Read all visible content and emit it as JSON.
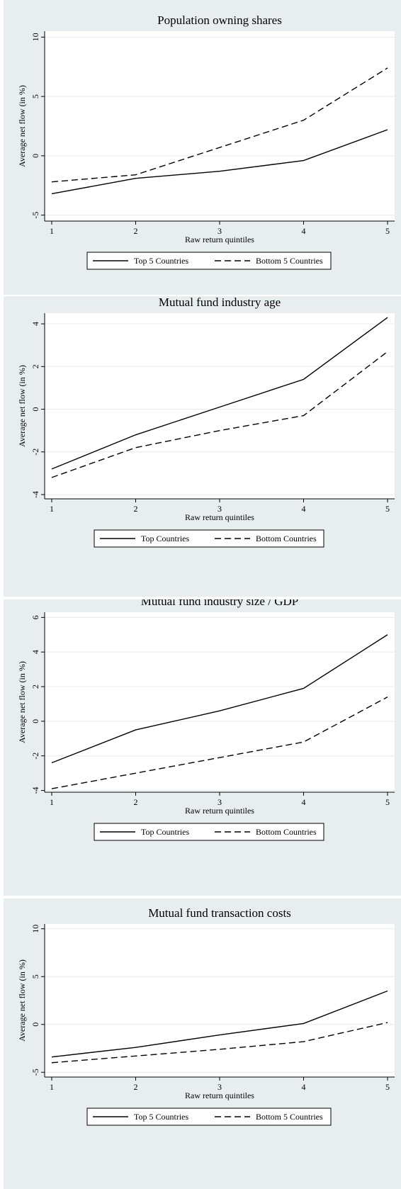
{
  "chart_data": [
    {
      "type": "line",
      "title": "Population owning shares",
      "xlabel": "Raw return quintiles",
      "ylabel": "Average net flow (in %)",
      "x": [
        1,
        2,
        3,
        4,
        5
      ],
      "ylim": [
        -5.5,
        10.5
      ],
      "yticks": [
        -5,
        0,
        5,
        10
      ],
      "grid": true,
      "legend_position": "bottom",
      "series": [
        {
          "name": "Top 5 Countries",
          "style": "solid",
          "values": [
            -3.2,
            -1.9,
            -1.3,
            -0.4,
            2.2
          ]
        },
        {
          "name": "Bottom 5 Countries",
          "style": "dashed",
          "values": [
            -2.2,
            -1.6,
            0.7,
            3.0,
            7.4
          ]
        }
      ]
    },
    {
      "type": "line",
      "title": "Mutual fund industry age",
      "xlabel": "Raw return quintiles",
      "ylabel": "Average net flow (in %)",
      "x": [
        1,
        2,
        3,
        4,
        5
      ],
      "ylim": [
        -4.2,
        4.5
      ],
      "yticks": [
        -4,
        -2,
        0,
        2,
        4
      ],
      "grid": true,
      "legend_position": "bottom",
      "series": [
        {
          "name": "Top Countries",
          "style": "solid",
          "values": [
            -2.8,
            -1.2,
            0.1,
            1.4,
            4.3
          ]
        },
        {
          "name": "Bottom Countries",
          "style": "dashed",
          "values": [
            -3.2,
            -1.8,
            -1.0,
            -0.3,
            2.7
          ]
        }
      ]
    },
    {
      "type": "line",
      "title": "Mutual fund industry size / GDP",
      "xlabel": "Raw return quintiles",
      "ylabel": "Average net flow (in %)",
      "x": [
        1,
        2,
        3,
        4,
        5
      ],
      "ylim": [
        -4.1,
        6.3
      ],
      "yticks": [
        -4,
        -2,
        0,
        2,
        4,
        6
      ],
      "grid": true,
      "legend_position": "bottom",
      "series": [
        {
          "name": "Top Countries",
          "style": "solid",
          "values": [
            -2.4,
            -0.5,
            0.6,
            1.9,
            5.0
          ]
        },
        {
          "name": "Bottom Countries",
          "style": "dashed",
          "values": [
            -3.9,
            -3.0,
            -2.1,
            -1.2,
            1.4
          ]
        }
      ]
    },
    {
      "type": "line",
      "title": "Mutual fund transaction costs",
      "xlabel": "Raw return quintiles",
      "ylabel": "Average net flow (in %)",
      "x": [
        1,
        2,
        3,
        4,
        5
      ],
      "ylim": [
        -5.5,
        10.5
      ],
      "yticks": [
        -5,
        0,
        5,
        10
      ],
      "grid": true,
      "legend_position": "bottom",
      "series": [
        {
          "name": "Top 5 Countries",
          "style": "solid",
          "values": [
            -3.4,
            -2.4,
            -1.1,
            0.1,
            3.5
          ]
        },
        {
          "name": "Bottom 5 Countries",
          "style": "dashed",
          "values": [
            -4.0,
            -3.3,
            -2.6,
            -1.8,
            0.2
          ]
        }
      ]
    }
  ]
}
